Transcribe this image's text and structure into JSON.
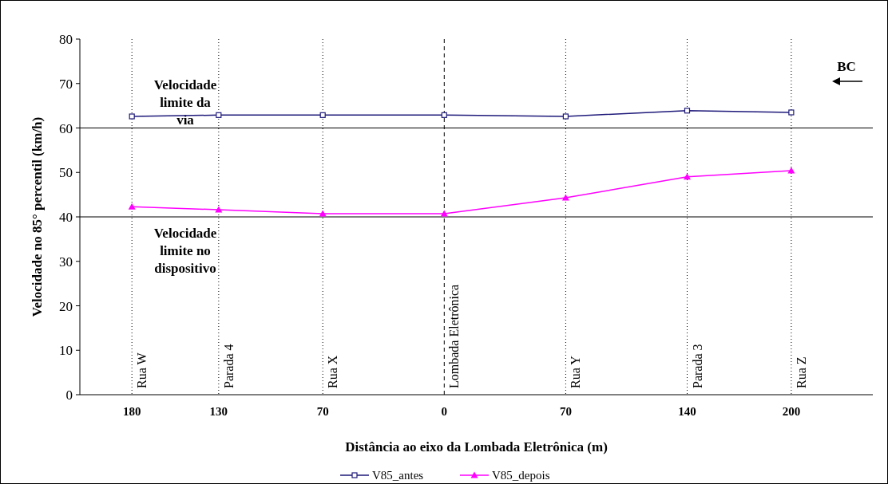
{
  "chart_data": {
    "type": "line",
    "xlabel": "Distância ao eixo da Lombada Eletrônica (m)",
    "ylabel": "Velocidade no 85° percentil (km/h)",
    "x": [
      -180,
      -130,
      -70,
      0,
      70,
      140,
      200
    ],
    "xlim": [
      -210,
      247
    ],
    "xticks": [
      {
        "value": -180,
        "label": "180"
      },
      {
        "value": -130,
        "label": "130"
      },
      {
        "value": -70,
        "label": "70"
      },
      0,
      70,
      140,
      200
    ],
    "ylim": [
      0,
      80
    ],
    "yticks": [
      0,
      10,
      20,
      30,
      40,
      50,
      60,
      70,
      80
    ],
    "series": [
      {
        "name": "V85_antes",
        "color": "#1f1a7a",
        "marker": "square",
        "values": [
          62.6,
          62.9,
          62.9,
          62.9,
          62.6,
          63.9,
          63.5
        ]
      },
      {
        "name": "V85_depois",
        "color": "#ff00ff",
        "marker": "triangle",
        "values": [
          42.3,
          41.6,
          40.7,
          40.7,
          44.3,
          49.0,
          50.4
        ]
      }
    ],
    "ref_lines": [
      {
        "axis": "y",
        "value": 60,
        "label": "Velocidade limite da via",
        "color": "#000000",
        "line_style": "solid"
      },
      {
        "axis": "y",
        "value": 40,
        "label": "Velocidade limite no dispositivo",
        "color": "#000000",
        "line_style": "solid"
      },
      {
        "axis": "x",
        "value": -180,
        "label": "Rua W",
        "color": "#000000",
        "line_style": "dotted"
      },
      {
        "axis": "x",
        "value": -130,
        "label": "Parada 4",
        "color": "#000000",
        "line_style": "dotted"
      },
      {
        "axis": "x",
        "value": -70,
        "label": "Rua X",
        "color": "#000000",
        "line_style": "dotted"
      },
      {
        "axis": "x",
        "value": 0,
        "label": "Lombada Eletrônica",
        "color": "#000000",
        "line_style": "dashed"
      },
      {
        "axis": "x",
        "value": 70,
        "label": "Rua Y",
        "color": "#000000",
        "line_style": "dotted"
      },
      {
        "axis": "x",
        "value": 140,
        "label": "Parada 3",
        "color": "#000000",
        "line_style": "dotted"
      },
      {
        "axis": "x",
        "value": 200,
        "label": "Rua Z",
        "color": "#000000",
        "line_style": "dotted"
      }
    ],
    "annotations": [
      "BC"
    ],
    "legend": "bottom",
    "grid": false
  }
}
